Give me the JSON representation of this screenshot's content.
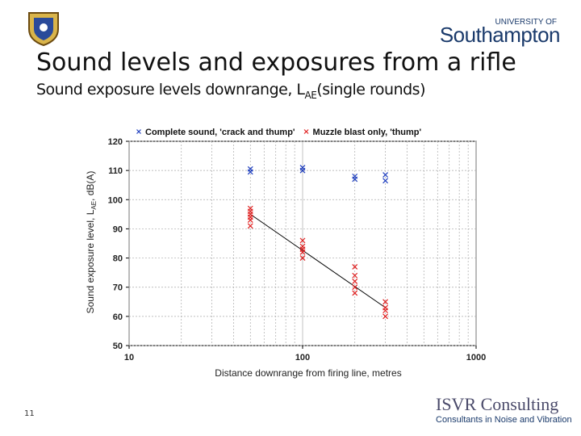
{
  "header": {
    "university_small": "UNIVERSITY OF",
    "university": "Southampton"
  },
  "title": "Sound levels and exposures from a rifle",
  "subtitle": {
    "text": "Sound exposure levels downrange, L",
    "sub": "AE",
    "after": "(single rounds)"
  },
  "chart_data": {
    "type": "scatter",
    "y_label": {
      "text": "Sound exposure level, L",
      "sub": "AE",
      "after": ", dB(A)"
    },
    "x_label": "Distance downrange from firing line, metres",
    "log_x": true,
    "grid": true,
    "xlim": [
      10,
      1000
    ],
    "xticks": [
      10,
      100,
      1000
    ],
    "ylim": [
      50,
      120
    ],
    "yticks": [
      50,
      60,
      70,
      80,
      90,
      100,
      110,
      120
    ],
    "series": [
      {
        "name": "Complete sound, 'crack and thump'",
        "color": "#1f3fbf",
        "x": [
          50,
          50,
          100,
          100,
          200,
          200,
          300,
          300
        ],
        "values": [
          109.5,
          110.5,
          110,
          111,
          107,
          108,
          106.5,
          108.5
        ]
      },
      {
        "name": "Muzzle blast only, 'thump'",
        "color": "#e02020",
        "x": [
          50,
          50,
          50,
          50,
          50,
          50,
          100,
          100,
          100,
          100,
          100,
          200,
          200,
          200,
          200,
          200,
          300,
          300,
          300,
          300
        ],
        "values": [
          91,
          93,
          94,
          95,
          96,
          97,
          80,
          82,
          83,
          84,
          86,
          68,
          70,
          72,
          74,
          77,
          60,
          62,
          63,
          65
        ]
      }
    ],
    "trendline": {
      "x": [
        50,
        300
      ],
      "values": [
        95,
        63
      ],
      "color": "#000000"
    }
  },
  "footer": {
    "page": "11",
    "brand": "ISVR Consulting",
    "tagline": "Consultants in Noise and Vibration"
  }
}
